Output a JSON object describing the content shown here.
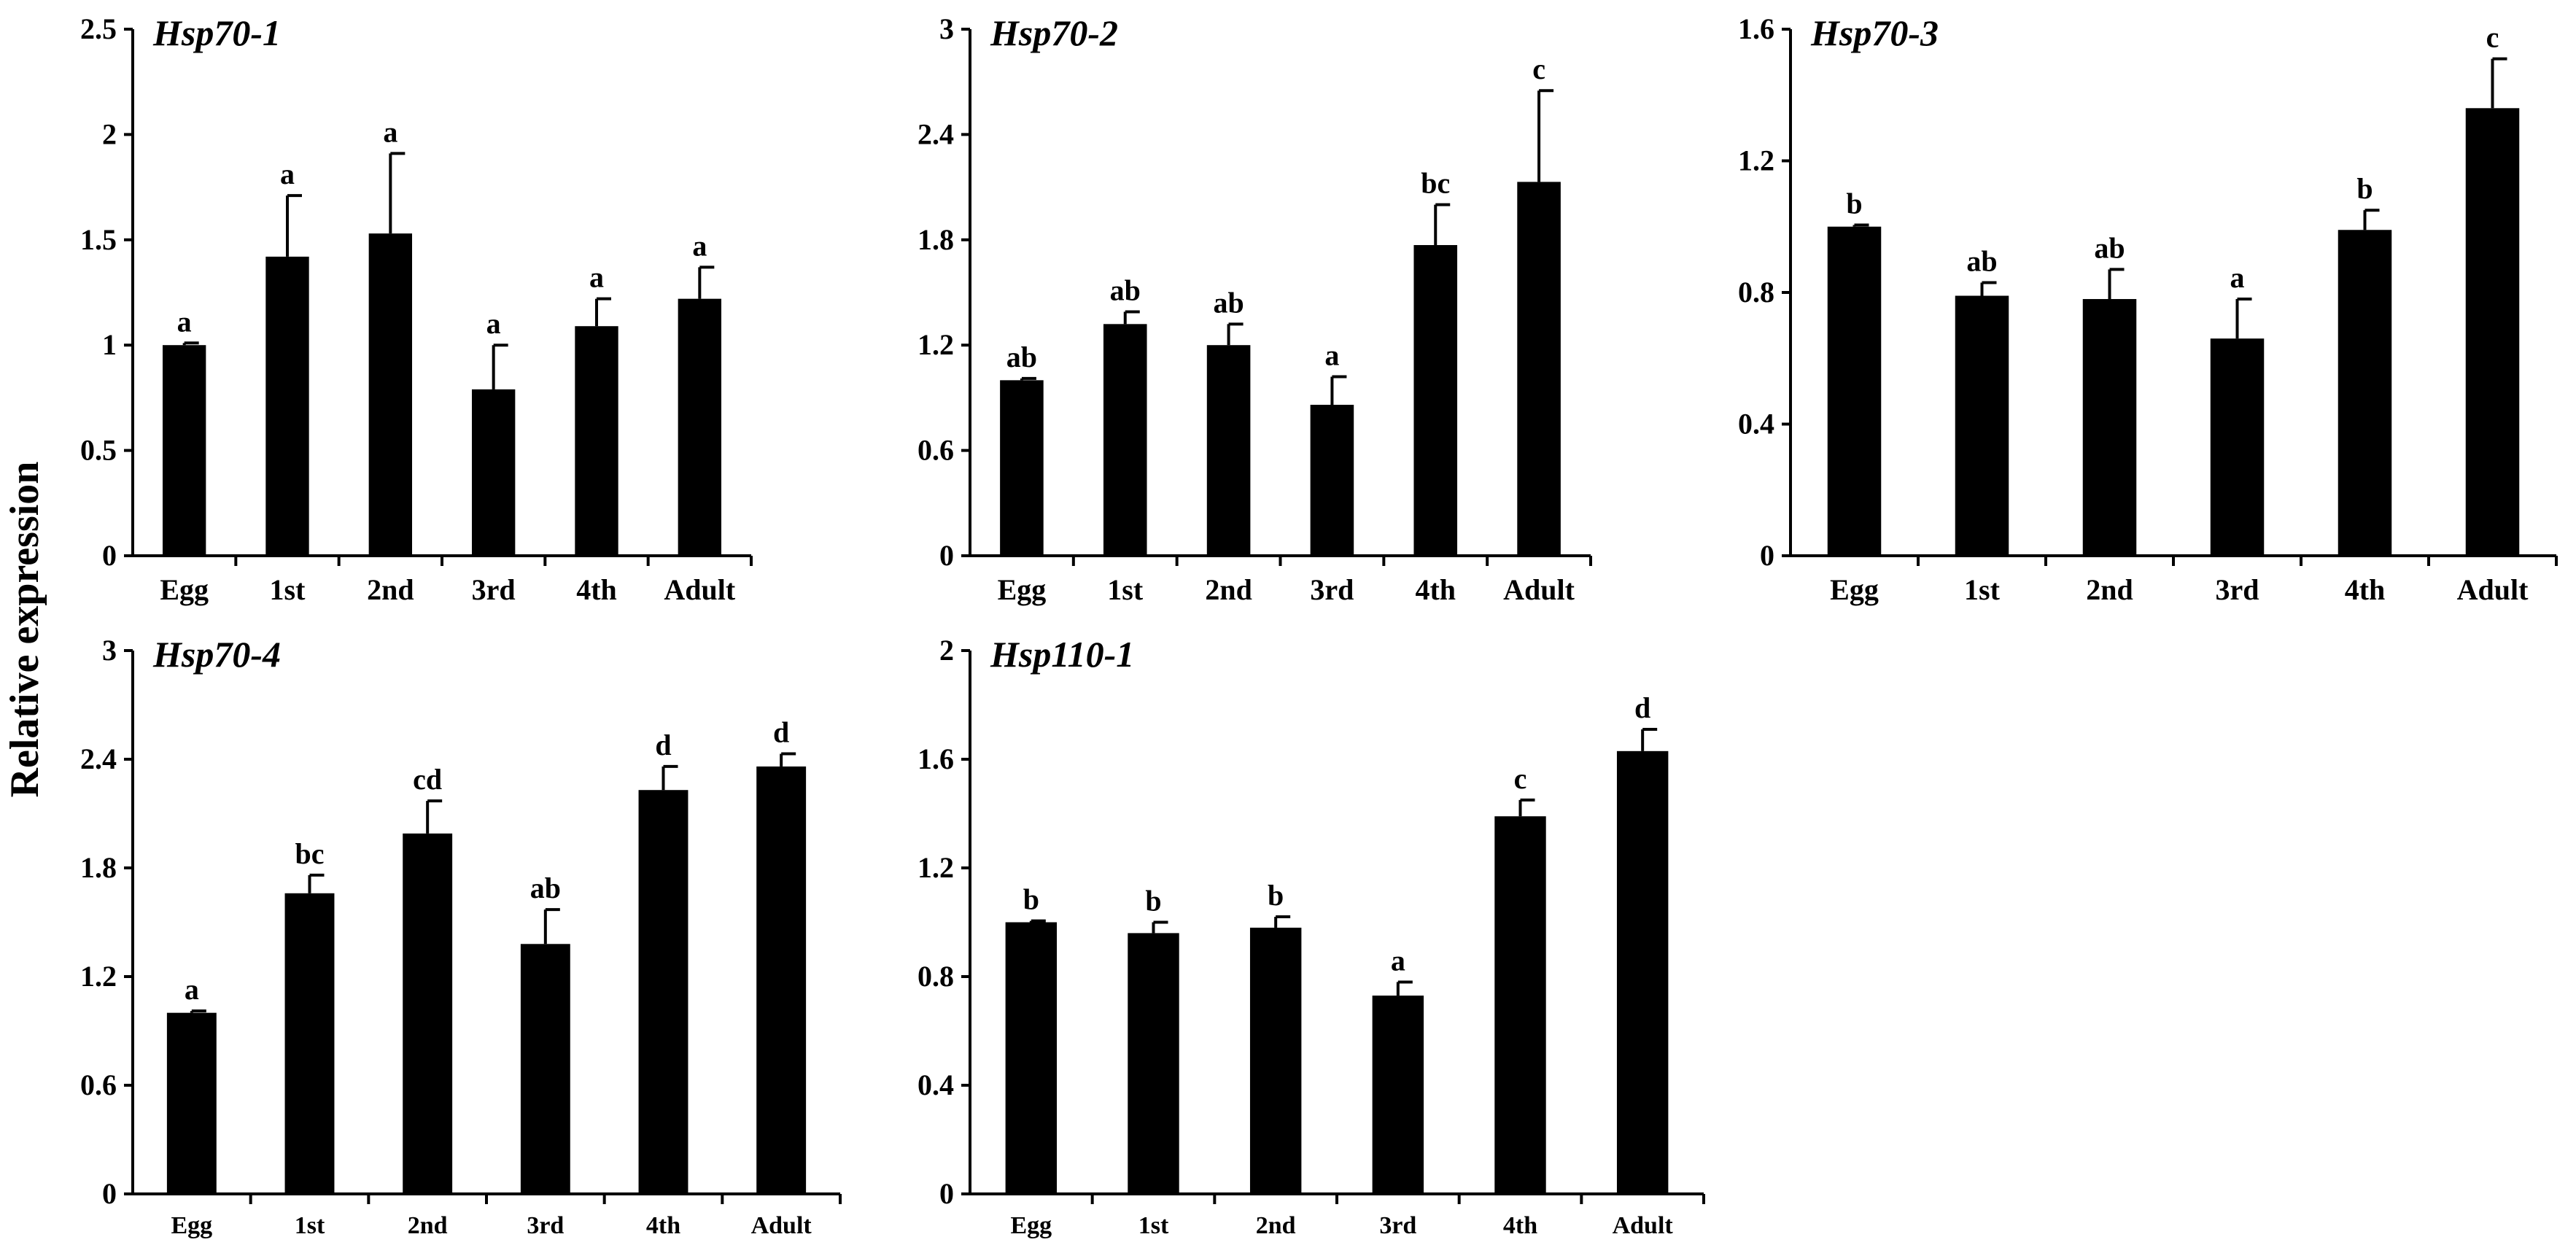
{
  "figure": {
    "ylabel": "Relative expression",
    "colors": {
      "bar": "#000000",
      "axis": "#000000",
      "background": "#ffffff"
    }
  },
  "chart_data": [
    {
      "type": "bar",
      "title": "Hsp70-1",
      "categories": [
        "Egg",
        "1st",
        "2nd",
        "3rd",
        "4th",
        "Adult"
      ],
      "values": [
        1.0,
        1.42,
        1.53,
        0.79,
        1.09,
        1.22
      ],
      "errors": [
        0.01,
        0.29,
        0.38,
        0.21,
        0.13,
        0.15
      ],
      "significance": [
        "a",
        "a",
        "a",
        "a",
        "a",
        "a"
      ],
      "ylim": [
        0,
        2.5
      ],
      "yticks": [
        "0",
        "0.5",
        "1",
        "1.5",
        "2",
        "2.5"
      ],
      "xlabel": "",
      "ylabel": "Relative expression"
    },
    {
      "type": "bar",
      "title": "Hsp70-2",
      "categories": [
        "Egg",
        "1st",
        "2nd",
        "3rd",
        "4th",
        "Adult"
      ],
      "values": [
        1.0,
        1.32,
        1.2,
        0.86,
        1.77,
        2.13
      ],
      "errors": [
        0.01,
        0.07,
        0.12,
        0.16,
        0.23,
        0.52
      ],
      "significance": [
        "ab",
        "ab",
        "ab",
        "a",
        "bc",
        "c"
      ],
      "ylim": [
        0,
        3
      ],
      "yticks": [
        "0",
        "0.6",
        "1.2",
        "1.8",
        "2.4",
        "3"
      ],
      "xlabel": "",
      "ylabel": "Relative expression"
    },
    {
      "type": "bar",
      "title": "Hsp70-3",
      "categories": [
        "Egg",
        "1st",
        "2nd",
        "3rd",
        "4th",
        "Adult"
      ],
      "values": [
        1.0,
        0.79,
        0.78,
        0.66,
        0.99,
        1.36
      ],
      "errors": [
        0.005,
        0.04,
        0.09,
        0.12,
        0.06,
        0.15
      ],
      "significance": [
        "b",
        "ab",
        "ab",
        "a",
        "b",
        "c"
      ],
      "ylim": [
        0,
        1.6
      ],
      "yticks": [
        "0",
        "0.4",
        "0.8",
        "1.2",
        "1.6"
      ],
      "xlabel": "",
      "ylabel": "Relative expression"
    },
    {
      "type": "bar",
      "title": "Hsp70-4",
      "categories": [
        "Egg",
        "1st",
        "2nd",
        "3rd",
        "4th",
        "Adult"
      ],
      "values": [
        1.0,
        1.66,
        1.99,
        1.38,
        2.23,
        2.36
      ],
      "errors": [
        0.01,
        0.1,
        0.18,
        0.19,
        0.13,
        0.07
      ],
      "significance": [
        "a",
        "bc",
        "cd",
        "ab",
        "d",
        "d"
      ],
      "ylim": [
        0,
        3
      ],
      "yticks": [
        "0",
        "0.6",
        "1.2",
        "1.8",
        "2.4",
        "3"
      ],
      "xlabel": "",
      "ylabel": "Relative expression"
    },
    {
      "type": "bar",
      "title": "Hsp110-1",
      "categories": [
        "Egg",
        "1st",
        "2nd",
        "3rd",
        "4th",
        "Adult"
      ],
      "values": [
        1.0,
        0.96,
        0.98,
        0.73,
        1.39,
        1.63
      ],
      "errors": [
        0.005,
        0.04,
        0.04,
        0.05,
        0.06,
        0.08
      ],
      "significance": [
        "b",
        "b",
        "b",
        "a",
        "c",
        "d"
      ],
      "ylim": [
        0,
        2
      ],
      "yticks": [
        "0",
        "0.4",
        "0.8",
        "1.2",
        "1.6",
        "2"
      ],
      "xlabel": "",
      "ylabel": "Relative expression"
    }
  ]
}
